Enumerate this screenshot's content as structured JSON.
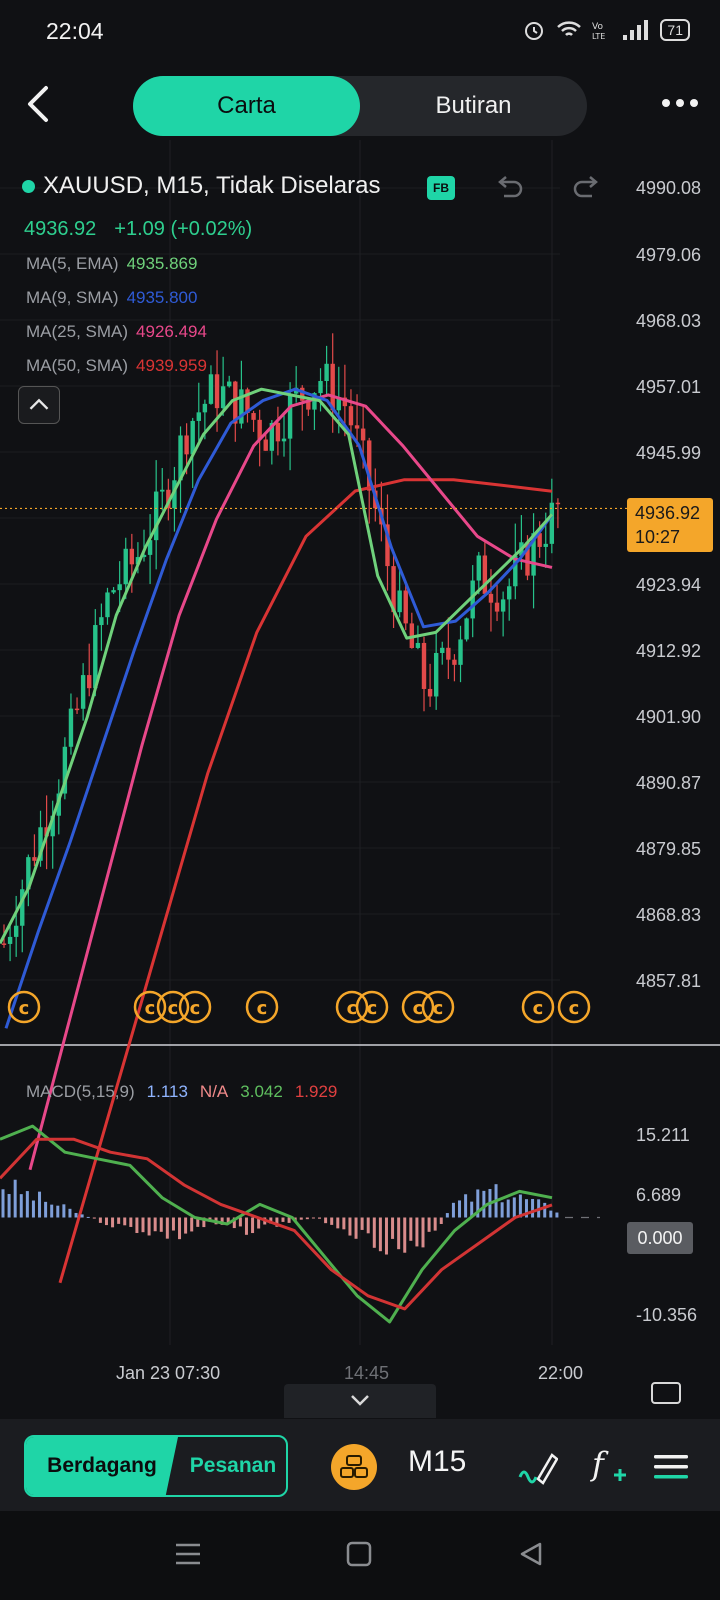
{
  "status": {
    "time": "22:04",
    "battery": "71"
  },
  "tabs": {
    "active": "Carta",
    "inactive": "Butiran"
  },
  "symbol": {
    "title": "XAUUSD, M15, Tidak Diselaras",
    "badge": "FB"
  },
  "price": {
    "last": "4936.92",
    "change": "+1.09 (+0.02%)"
  },
  "moving_averages": [
    {
      "label": "MA(5, EMA)",
      "value": "4935.869",
      "color": "#6fd17b"
    },
    {
      "label": "MA(9, SMA)",
      "value": "4935.800",
      "color": "#2f5bd6"
    },
    {
      "label": "MA(25, SMA)",
      "value": "4926.494",
      "color": "#e8488a"
    },
    {
      "label": "MA(50, SMA)",
      "value": "4939.959",
      "color": "#d93434"
    }
  ],
  "price_axis": [
    "4990.08",
    "4979.06",
    "4968.03",
    "4957.01",
    "4945.99",
    "4923.94",
    "4912.92",
    "4901.90",
    "4890.87",
    "4879.85",
    "4868.83",
    "4857.81"
  ],
  "price_tag": {
    "price": "4936.92",
    "countdown": "10:27"
  },
  "macd": {
    "label": "MACD(5,15,9)",
    "values": [
      {
        "value": "1.113",
        "color": "#8fb4ff"
      },
      {
        "value": "N/A",
        "color": "#f08a8a"
      },
      {
        "value": "3.042",
        "color": "#5fbf5f"
      },
      {
        "value": "1.929",
        "color": "#e04040"
      }
    ],
    "axis": [
      "15.211",
      "6.689",
      "-10.356"
    ],
    "zero_tag": "0.000"
  },
  "time_axis": [
    "Jan 23 07:30",
    "14:45",
    "22:00"
  ],
  "toolbar": {
    "trade": "Berdagang",
    "orders": "Pesanan",
    "timeframe": "M15"
  },
  "colors": {
    "accent": "#1fd5a7",
    "bull": "#27c28a",
    "bear": "#e24a4a",
    "price_tag": "#f4a62a"
  },
  "icons": [
    "back-arrow-icon",
    "more-dots-icon",
    "undo-icon",
    "redo-icon",
    "chevron-up-icon",
    "event-c-icon",
    "coin-icon",
    "draw-pen-icon",
    "fx-indicator-icon",
    "menu-icon",
    "fullscreen-icon"
  ],
  "chart_data": {
    "type": "candlestick",
    "title": "XAUUSD, M15, Tidak Diselaras",
    "y_range": [
      4850,
      4995
    ],
    "ohlc_samples": [
      4860,
      4875,
      4888,
      4905,
      4922,
      4928,
      4938,
      4952,
      4958,
      4955,
      4950,
      4956,
      4960,
      4955,
      4938,
      4918,
      4905,
      4912,
      4925,
      4922,
      4930,
      4936.92
    ],
    "ma5": [
      4860,
      4870,
      4885,
      4900,
      4918,
      4930,
      4940,
      4950,
      4956,
      4958,
      4957,
      4956,
      4950,
      4925,
      4914,
      4915,
      4920,
      4925,
      4930,
      4935.87
    ],
    "ma9": [
      4845,
      4862,
      4878,
      4895,
      4912,
      4928,
      4942,
      4952,
      4956,
      4958,
      4956,
      4948,
      4930,
      4916,
      4917,
      4922,
      4928,
      4935.8
    ],
    "ma25": [
      4820,
      4845,
      4870,
      4895,
      4918,
      4935,
      4948,
      4955,
      4957,
      4955,
      4948,
      4940,
      4932,
      4928,
      4926.49
    ],
    "ma50": [
      4800,
      4830,
      4860,
      4890,
      4915,
      4932,
      4940,
      4942,
      4942,
      4941,
      4939.96
    ],
    "macd_line": [
      12,
      14,
      10,
      9,
      8,
      3,
      0,
      -1,
      2,
      0,
      -6,
      -12,
      -16,
      -8,
      -2,
      2,
      4,
      3.04
    ],
    "signal_line": [
      6,
      12,
      12,
      10,
      9,
      5,
      2,
      0,
      -2,
      -8,
      -12,
      -14,
      -8,
      -4,
      0,
      1.93
    ],
    "histogram": [
      5,
      3,
      1,
      -1,
      -2,
      -3,
      -1,
      -2,
      -1,
      0,
      -2,
      -4,
      -6,
      2,
      4,
      3,
      1.11
    ]
  }
}
